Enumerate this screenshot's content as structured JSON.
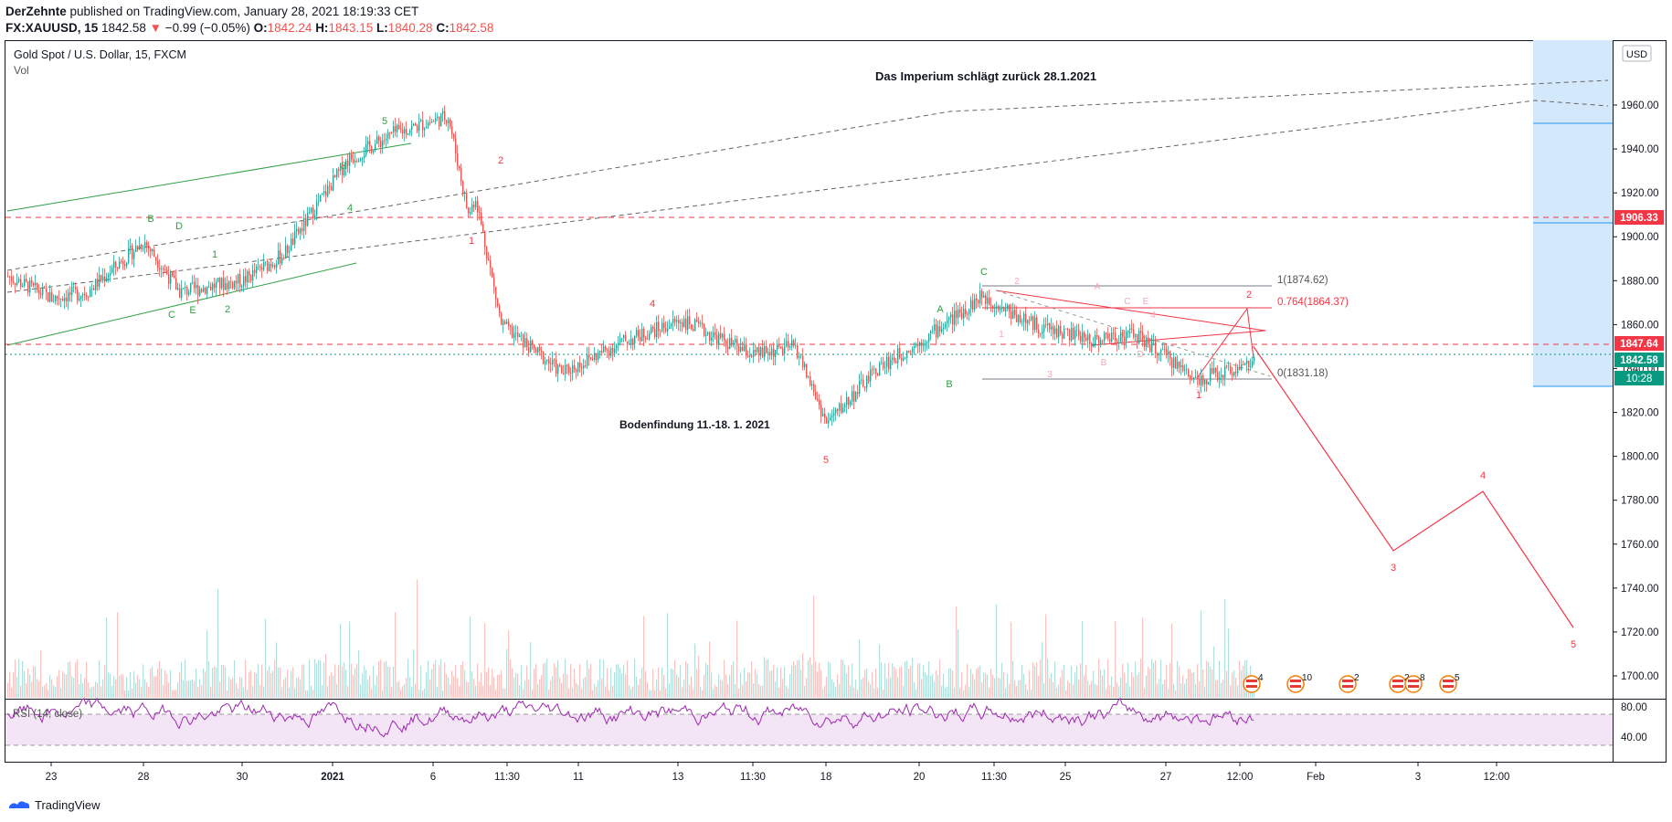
{
  "header": {
    "author": "DerZehnte",
    "published": " published on TradingView.com, January 28, 2021 18:19:33 CET",
    "symbol": "FX:XAUUSD, 15",
    "price": "1842.58",
    "change": "−0.99 (−0.05%)",
    "o_label": "O:",
    "o": "1842.24",
    "h_label": "H:",
    "h": "1843.15",
    "l_label": "L:",
    "l": "1840.28",
    "c_label": "C:",
    "c": "1842.58"
  },
  "pane": {
    "title": "Gold Spot / U.S. Dollar, 15, FXCM",
    "vol_label": "Vol",
    "currency": "USD",
    "rsi_label": "RSI (14, close)",
    "rsi_ticks": [
      "80.00",
      "40.00"
    ]
  },
  "annotations": {
    "headline": "Das Imperium schlägt zurück 28.1.2021",
    "bottom_note": "Bodenfindung 11.-18. 1. 2021",
    "fib_1": "1(1874.62)",
    "fib_0764": "0.764(1864.37)",
    "fib_0": "0(1831.18)"
  },
  "price_tags": {
    "level_1906": "1906.33",
    "level_1847": "1847.64",
    "last_price": "1842.58",
    "countdown": "10:28"
  },
  "events": [
    "4",
    "10",
    "2",
    "2",
    "8",
    "5"
  ],
  "footer": {
    "brand": "TradingView"
  },
  "colors": {
    "up": "#26a69a",
    "down": "#ef5350",
    "wave_green": "#2ea043",
    "wave_red": "#f23645",
    "rsi": "#9c27b0",
    "zone": "#d4e8fb",
    "dashed_red": "#f23645",
    "price_teal": "#089981"
  },
  "chart_data": {
    "type": "candlestick",
    "title": "Gold Spot / U.S. Dollar, 15, FXCM",
    "x_ticks": [
      "23",
      "28",
      "30",
      "2021",
      "6",
      "11:30",
      "11",
      "13",
      "11:30",
      "18",
      "20",
      "11:30",
      "25",
      "27",
      "12:00",
      "Feb",
      "3",
      "12:00"
    ],
    "y_ticks": [
      1960,
      1940,
      1920,
      1900,
      1880,
      1860,
      1840,
      1820,
      1800,
      1780,
      1760,
      1740,
      1720,
      1700
    ],
    "ylim": [
      1688,
      1974
    ],
    "key_levels": [
      1906.33,
      1847.64,
      1842.58
    ],
    "fib_levels": [
      {
        "label": "1",
        "price": 1874.62
      },
      {
        "label": "0.764",
        "price": 1864.37
      },
      {
        "label": "0",
        "price": 1831.18
      }
    ],
    "price_path": [
      {
        "x": "Dec 22",
        "y": 1882
      },
      {
        "x": "Dec 23",
        "y": 1872
      },
      {
        "x": "Dec 24",
        "y": 1875
      },
      {
        "x": "Dec 28",
        "y": 1898
      },
      {
        "x": "Dec 29",
        "y": 1875
      },
      {
        "x": "Dec 30",
        "y": 1880
      },
      {
        "x": "Dec 31",
        "y": 1892
      },
      {
        "x": "Jan 4",
        "y": 1935
      },
      {
        "x": "Jan 5",
        "y": 1947
      },
      {
        "x": "Jan 6",
        "y": 1955
      },
      {
        "x": "Jan 7",
        "y": 1910
      },
      {
        "x": "Jan 8",
        "y": 1918
      },
      {
        "x": "Jan 8b",
        "y": 1860
      },
      {
        "x": "Jan 11",
        "y": 1838
      },
      {
        "x": "Jan 12",
        "y": 1852
      },
      {
        "x": "Jan 13",
        "y": 1862
      },
      {
        "x": "Jan 14",
        "y": 1846
      },
      {
        "x": "Jan 15",
        "y": 1850
      },
      {
        "x": "Jan 18",
        "y": 1815
      },
      {
        "x": "Jan 19",
        "y": 1840
      },
      {
        "x": "Jan 20",
        "y": 1852
      },
      {
        "x": "Jan 21",
        "y": 1873
      },
      {
        "x": "Jan 22",
        "y": 1860
      },
      {
        "x": "Jan 25",
        "y": 1853
      },
      {
        "x": "Jan 26",
        "y": 1856
      },
      {
        "x": "Jan 27",
        "y": 1835
      },
      {
        "x": "Jan 28",
        "y": 1842.58
      }
    ],
    "projection": [
      {
        "label": "2",
        "y": 1864
      },
      {
        "label": "3",
        "y": 1757
      },
      {
        "label": "4",
        "y": 1784
      },
      {
        "label": "5",
        "y": 1722
      }
    ],
    "rsi_range": [
      0,
      100
    ]
  }
}
